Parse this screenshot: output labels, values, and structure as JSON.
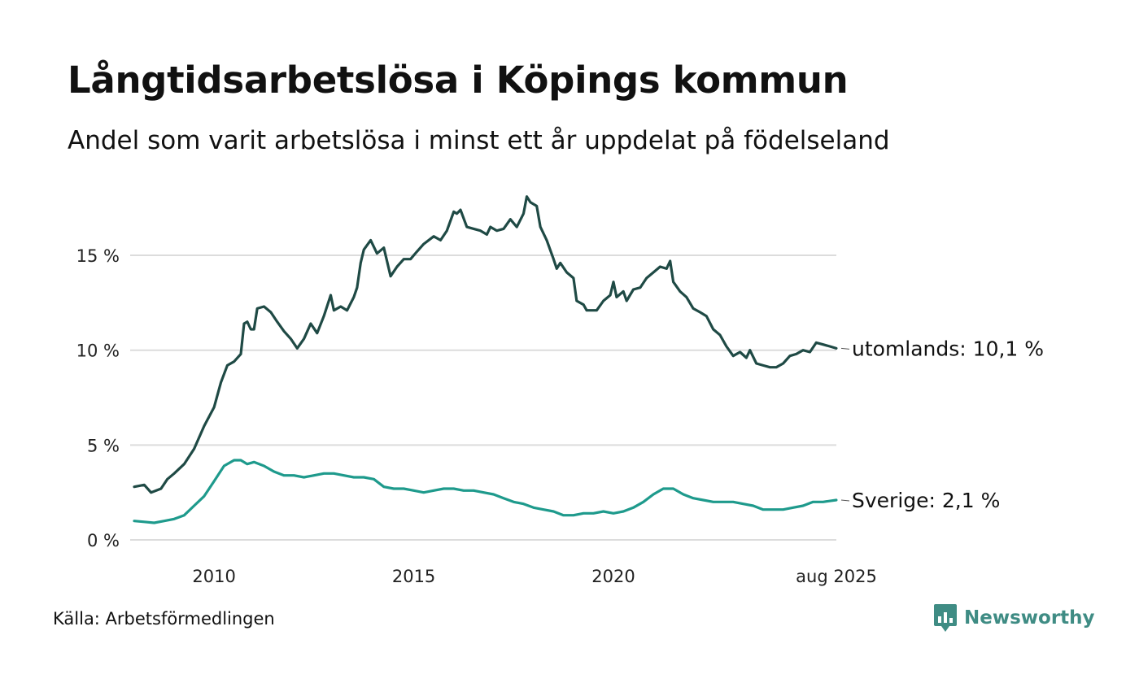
{
  "title": "Långtidsarbetslösa i Köpings kommun",
  "subtitle": "Andel som varit arbetslösa i minst ett år uppdelat på födelseland",
  "source": "Källa: Arbetsförmedlingen",
  "brand": "Newsworthy",
  "colors": {
    "utomlands": "#1f4a45",
    "sverige": "#1e9a8c",
    "grid": "#dcdcdc",
    "brand": "#3f8c84"
  },
  "chart_data": {
    "type": "line",
    "title": "Långtidsarbetslösa i Köpings kommun",
    "subtitle": "Andel som varit arbetslösa i minst ett år uppdelat på födelseland",
    "xlabel": "",
    "ylabel": "",
    "x_range": [
      2008.0,
      2025.583
    ],
    "ylim": [
      0,
      18.5
    ],
    "yticks": [
      0,
      5,
      10,
      15
    ],
    "ytick_labels": [
      "0 %",
      "5 %",
      "10 %",
      "15 %"
    ],
    "xticks": [
      2010,
      2015,
      2020,
      2025.583
    ],
    "xtick_labels": [
      "2010",
      "2015",
      "2020",
      "aug 2025"
    ],
    "grid": true,
    "legend": "end-of-line labels",
    "series": [
      {
        "name": "utomlands",
        "end_label": "utomlands: 10,1 %",
        "color": "#1f4a45",
        "points": [
          [
            2008.0,
            2.8
          ],
          [
            2008.25,
            2.9
          ],
          [
            2008.42,
            2.5
          ],
          [
            2008.67,
            2.7
          ],
          [
            2008.83,
            3.2
          ],
          [
            2009.0,
            3.5
          ],
          [
            2009.25,
            4.0
          ],
          [
            2009.5,
            4.8
          ],
          [
            2009.75,
            6.0
          ],
          [
            2010.0,
            7.0
          ],
          [
            2010.17,
            8.3
          ],
          [
            2010.33,
            9.2
          ],
          [
            2010.5,
            9.4
          ],
          [
            2010.67,
            9.8
          ],
          [
            2010.75,
            11.4
          ],
          [
            2010.83,
            11.5
          ],
          [
            2010.92,
            11.1
          ],
          [
            2011.0,
            11.1
          ],
          [
            2011.08,
            12.2
          ],
          [
            2011.25,
            12.3
          ],
          [
            2011.42,
            12.0
          ],
          [
            2011.58,
            11.5
          ],
          [
            2011.75,
            11.0
          ],
          [
            2011.92,
            10.6
          ],
          [
            2012.08,
            10.1
          ],
          [
            2012.25,
            10.6
          ],
          [
            2012.42,
            11.4
          ],
          [
            2012.58,
            10.9
          ],
          [
            2012.75,
            11.8
          ],
          [
            2012.92,
            12.9
          ],
          [
            2013.0,
            12.1
          ],
          [
            2013.17,
            12.3
          ],
          [
            2013.33,
            12.1
          ],
          [
            2013.5,
            12.8
          ],
          [
            2013.58,
            13.3
          ],
          [
            2013.67,
            14.6
          ],
          [
            2013.75,
            15.3
          ],
          [
            2013.92,
            15.8
          ],
          [
            2014.08,
            15.1
          ],
          [
            2014.25,
            15.4
          ],
          [
            2014.42,
            13.9
          ],
          [
            2014.58,
            14.4
          ],
          [
            2014.75,
            14.8
          ],
          [
            2014.92,
            14.8
          ],
          [
            2015.08,
            15.2
          ],
          [
            2015.25,
            15.6
          ],
          [
            2015.5,
            16.0
          ],
          [
            2015.67,
            15.8
          ],
          [
            2015.83,
            16.3
          ],
          [
            2016.0,
            17.3
          ],
          [
            2016.08,
            17.2
          ],
          [
            2016.17,
            17.4
          ],
          [
            2016.33,
            16.5
          ],
          [
            2016.5,
            16.4
          ],
          [
            2016.67,
            16.3
          ],
          [
            2016.83,
            16.1
          ],
          [
            2016.92,
            16.5
          ],
          [
            2017.08,
            16.3
          ],
          [
            2017.25,
            16.4
          ],
          [
            2017.42,
            16.9
          ],
          [
            2017.58,
            16.5
          ],
          [
            2017.75,
            17.2
          ],
          [
            2017.83,
            18.1
          ],
          [
            2017.92,
            17.8
          ],
          [
            2018.08,
            17.6
          ],
          [
            2018.17,
            16.5
          ],
          [
            2018.33,
            15.8
          ],
          [
            2018.5,
            14.8
          ],
          [
            2018.58,
            14.3
          ],
          [
            2018.67,
            14.6
          ],
          [
            2018.83,
            14.1
          ],
          [
            2019.0,
            13.8
          ],
          [
            2019.08,
            12.6
          ],
          [
            2019.25,
            12.4
          ],
          [
            2019.33,
            12.1
          ],
          [
            2019.58,
            12.1
          ],
          [
            2019.75,
            12.6
          ],
          [
            2019.92,
            12.9
          ],
          [
            2020.0,
            13.6
          ],
          [
            2020.08,
            12.8
          ],
          [
            2020.25,
            13.1
          ],
          [
            2020.33,
            12.6
          ],
          [
            2020.5,
            13.2
          ],
          [
            2020.67,
            13.3
          ],
          [
            2020.83,
            13.8
          ],
          [
            2021.0,
            14.1
          ],
          [
            2021.17,
            14.4
          ],
          [
            2021.33,
            14.3
          ],
          [
            2021.42,
            14.7
          ],
          [
            2021.5,
            13.6
          ],
          [
            2021.67,
            13.1
          ],
          [
            2021.83,
            12.8
          ],
          [
            2022.0,
            12.2
          ],
          [
            2022.17,
            12.0
          ],
          [
            2022.33,
            11.8
          ],
          [
            2022.5,
            11.1
          ],
          [
            2022.67,
            10.8
          ],
          [
            2022.83,
            10.2
          ],
          [
            2023.0,
            9.7
          ],
          [
            2023.17,
            9.9
          ],
          [
            2023.33,
            9.6
          ],
          [
            2023.42,
            10.0
          ],
          [
            2023.58,
            9.3
          ],
          [
            2023.75,
            9.2
          ],
          [
            2023.92,
            9.1
          ],
          [
            2024.08,
            9.1
          ],
          [
            2024.25,
            9.3
          ],
          [
            2024.42,
            9.7
          ],
          [
            2024.58,
            9.8
          ],
          [
            2024.75,
            10.0
          ],
          [
            2024.92,
            9.9
          ],
          [
            2025.08,
            10.4
          ],
          [
            2025.25,
            10.3
          ],
          [
            2025.42,
            10.2
          ],
          [
            2025.58,
            10.1
          ]
        ]
      },
      {
        "name": "Sverige",
        "end_label": "Sverige:  2,1 %",
        "color": "#1e9a8c",
        "points": [
          [
            2008.0,
            1.0
          ],
          [
            2008.25,
            0.95
          ],
          [
            2008.5,
            0.9
          ],
          [
            2008.75,
            1.0
          ],
          [
            2009.0,
            1.1
          ],
          [
            2009.25,
            1.3
          ],
          [
            2009.5,
            1.8
          ],
          [
            2009.75,
            2.3
          ],
          [
            2010.0,
            3.1
          ],
          [
            2010.25,
            3.9
          ],
          [
            2010.5,
            4.2
          ],
          [
            2010.67,
            4.2
          ],
          [
            2010.83,
            4.0
          ],
          [
            2011.0,
            4.1
          ],
          [
            2011.25,
            3.9
          ],
          [
            2011.5,
            3.6
          ],
          [
            2011.75,
            3.4
          ],
          [
            2012.0,
            3.4
          ],
          [
            2012.25,
            3.3
          ],
          [
            2012.5,
            3.4
          ],
          [
            2012.75,
            3.5
          ],
          [
            2013.0,
            3.5
          ],
          [
            2013.25,
            3.4
          ],
          [
            2013.5,
            3.3
          ],
          [
            2013.75,
            3.3
          ],
          [
            2014.0,
            3.2
          ],
          [
            2014.25,
            2.8
          ],
          [
            2014.5,
            2.7
          ],
          [
            2014.75,
            2.7
          ],
          [
            2015.0,
            2.6
          ],
          [
            2015.25,
            2.5
          ],
          [
            2015.5,
            2.6
          ],
          [
            2015.75,
            2.7
          ],
          [
            2016.0,
            2.7
          ],
          [
            2016.25,
            2.6
          ],
          [
            2016.5,
            2.6
          ],
          [
            2016.75,
            2.5
          ],
          [
            2017.0,
            2.4
          ],
          [
            2017.25,
            2.2
          ],
          [
            2017.5,
            2.0
          ],
          [
            2017.75,
            1.9
          ],
          [
            2018.0,
            1.7
          ],
          [
            2018.25,
            1.6
          ],
          [
            2018.5,
            1.5
          ],
          [
            2018.75,
            1.3
          ],
          [
            2019.0,
            1.3
          ],
          [
            2019.25,
            1.4
          ],
          [
            2019.5,
            1.4
          ],
          [
            2019.75,
            1.5
          ],
          [
            2020.0,
            1.4
          ],
          [
            2020.25,
            1.5
          ],
          [
            2020.5,
            1.7
          ],
          [
            2020.75,
            2.0
          ],
          [
            2021.0,
            2.4
          ],
          [
            2021.25,
            2.7
          ],
          [
            2021.5,
            2.7
          ],
          [
            2021.75,
            2.4
          ],
          [
            2022.0,
            2.2
          ],
          [
            2022.25,
            2.1
          ],
          [
            2022.5,
            2.0
          ],
          [
            2022.75,
            2.0
          ],
          [
            2023.0,
            2.0
          ],
          [
            2023.25,
            1.9
          ],
          [
            2023.5,
            1.8
          ],
          [
            2023.75,
            1.6
          ],
          [
            2024.0,
            1.6
          ],
          [
            2024.25,
            1.6
          ],
          [
            2024.5,
            1.7
          ],
          [
            2024.75,
            1.8
          ],
          [
            2025.0,
            2.0
          ],
          [
            2025.25,
            2.0
          ],
          [
            2025.58,
            2.1
          ]
        ]
      }
    ]
  }
}
